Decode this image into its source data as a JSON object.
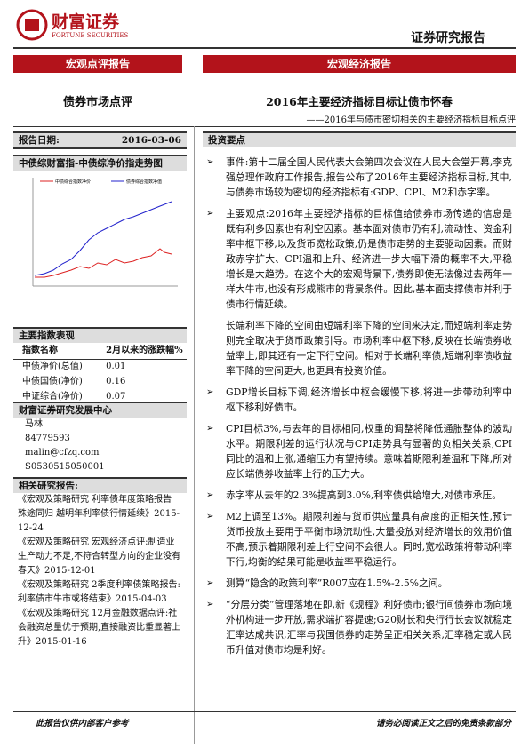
{
  "header": {
    "logo_cn": "财富证券",
    "logo_en": "FORTUNE SECURITIES",
    "doc_type": "证券研究报告"
  },
  "bars": {
    "left": "宏观点评报告",
    "right": "宏观经济报告"
  },
  "left_title": "债券市场点评",
  "title": "2016年主要经济指标目标让债市怀春",
  "subtitle": "——2016年与债市密切相关的主要经济指标目标点评",
  "report_date": {
    "label": "报告日期:",
    "value": "2016-03-06"
  },
  "chart": {
    "title": "中债综财富指-中债综净价指走势图",
    "legend": [
      "中债综合指数净价",
      "债券综合指数净值"
    ]
  },
  "index_table": {
    "title": "主要指数表现",
    "header": [
      "指数名称",
      "2月以来的涨跌幅%"
    ],
    "rows": [
      [
        "中债净价(总值)",
        "0.01"
      ],
      [
        "中债国债(净价)",
        "0.16"
      ],
      [
        "中证综合(净价)",
        "0.07"
      ]
    ]
  },
  "analyst": {
    "title": "财富证券研究发展中心",
    "lines": [
      "马林",
      "84779593",
      "malin@cfzq.com",
      "S0530515050001"
    ]
  },
  "related": {
    "title": "相关研究报告:",
    "items": [
      "《宏观及策略研究 利率债年度策略报告 殊途同归 越明年利率债行情延续》2015-12-24",
      "《宏观及策略研究 宏观经济点评:制造业生产动力不足,不符合转型方向的企业没有春天》2015-12-01",
      "《宏观及策略研究 2季度利率债策略报告:利率债市牛市或将结束》2015-04-03",
      "《宏观及策略研究 12月金融数据点评:社会融资总量优于预期,直接融资比重显著上升》2015-01-16"
    ]
  },
  "summary": {
    "title": "投资要点",
    "paragraphs": [
      "事件:第十二届全国人民代表大会第四次会议在人民大会堂开幕,李克强总理作政府工作报告,报告公布了2016年主要经济指标目标,其中,与债券市场较为密切的经济指标有:GDP、CPI、M2和赤字率。",
      "主要观点:2016年主要经济指标的目标值给债券市场传递的信息是既有利多因素也有利空因素。基本面对债市仍有利,流动性、资金利率中枢下移,以及货币宽松政策,仍是债市走势的主要驱动因素。而财政赤字扩大、CPI温和上升、经济进一步大幅下滑的概率不大,平稳增长是大趋势。在这个大的宏观背景下,债券即使无法像过去两年一样大牛市,也没有形成熊市的背景条件。因此,基本面支撑债市并利于债市行情延续。",
      "长端利率下降的空间由短端利率下降的空间来决定,而短端利率走势则完全取决于货币政策引导。市场利率中枢下移,反映在长端债券收益率上,即其还有一定下行空间。相对于长端利率债,短端利率债收益率下降的空间更大,也更具有投资价值。",
      "GDP增长目标下调,经济增长中枢会缓慢下移,将进一步带动利率中枢下移利好债市。",
      "CPI目标3%,与去年的目标相同,权重的调整将降低通胀整体的波动水平。期限利差的运行状况与CPI走势具有显著的负相关关系,CPI同比的温和上涨,通缩压力有望持续。意味着期限利差温和下降,所对应长端债券收益率上行的压力大。",
      "赤字率从去年的2.3%提高到3.0%,利率债供给增大,对债市承压。",
      "M2上调至13%。期限利差与货币供应量具有高度的正相关性,预计货币投放主要用于平衡市场流动性,大量投放对经济增长的效用价值不高,预示着期限利差上行空间不会很大。同时,宽松政策将带动利率下行,均衡的结果可能是收益率平稳运行。",
      "测算“隐含的政策利率”R007应在1.5%-2.5%之间。",
      "“分层分类”管理落地在即,新《规程》利好债市;银行间债券市场向境外机构进一步开放,需求端扩容提速;G20财长和央行行长会议就稳定汇率达成共识,汇率与我国债券的走势呈正相关关系,汇率稳定或人民币升值对债市均是利好。"
    ]
  },
  "footer": {
    "left": "此报告仅供内部客户参考",
    "right": "请务必阅读正文之后的免责条款部分"
  }
}
